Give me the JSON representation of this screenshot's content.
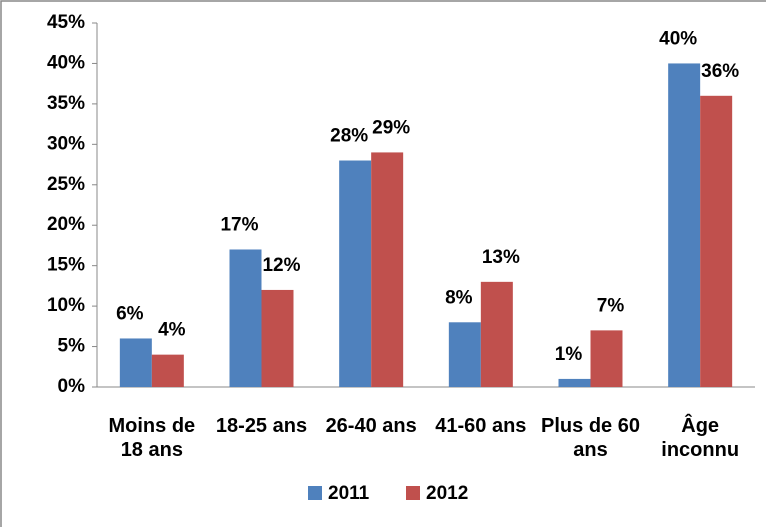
{
  "chart_data": {
    "type": "bar",
    "categories": [
      "Moins de 18 ans",
      "18-25 ans",
      "26-40 ans",
      "41-60 ans",
      "Plus de 60 ans",
      "Âge inconnu"
    ],
    "series": [
      {
        "name": "2011",
        "color": "#4f81bd",
        "values": [
          6,
          17,
          28,
          8,
          1,
          40
        ],
        "value_labels": [
          "6%",
          "17%",
          "28%",
          "8%",
          "1%",
          "40%"
        ]
      },
      {
        "name": "2012",
        "color": "#c0504d",
        "values": [
          4,
          12,
          29,
          13,
          7,
          36
        ],
        "value_labels": [
          "4%",
          "12%",
          "29%",
          "13%",
          "7%",
          "36%"
        ]
      }
    ],
    "ylim": [
      0,
      45
    ],
    "yticks": [
      {
        "value": 0,
        "label": "0%"
      },
      {
        "value": 5,
        "label": "5%"
      },
      {
        "value": 10,
        "label": "10%"
      },
      {
        "value": 15,
        "label": "15%"
      },
      {
        "value": 20,
        "label": "20%"
      },
      {
        "value": 25,
        "label": "25%"
      },
      {
        "value": 30,
        "label": "30%"
      },
      {
        "value": 35,
        "label": "35%"
      },
      {
        "value": 40,
        "label": "40%"
      },
      {
        "value": 45,
        "label": "45%"
      }
    ],
    "legend": "bottom"
  }
}
